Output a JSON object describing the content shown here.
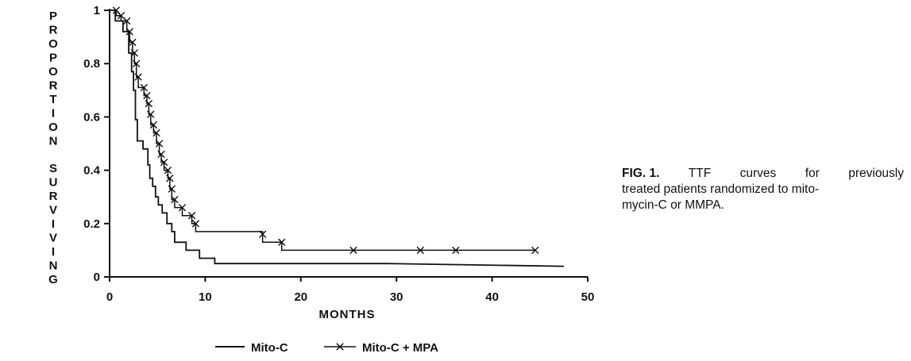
{
  "chart_data": {
    "type": "line",
    "step": true,
    "xlabel": "MONTHS",
    "ylabel": "PROPORTION SURVIVING",
    "xlim": [
      0,
      50
    ],
    "ylim": [
      0,
      1
    ],
    "x_ticks": [
      0,
      10,
      20,
      30,
      40,
      50
    ],
    "y_ticks": [
      {
        "value": 0,
        "label": "0"
      },
      {
        "value": 0.2,
        "label": "0.2"
      },
      {
        "value": 0.4,
        "label": "0.4"
      },
      {
        "value": 0.6,
        "label": "0.6"
      },
      {
        "value": 0.8,
        "label": "0.8"
      },
      {
        "value": 1,
        "label": "1"
      }
    ],
    "grid": false,
    "legend_position": "bottom",
    "series": [
      {
        "name": "Mito-C",
        "marker": "dot",
        "points": [
          [
            0,
            1
          ],
          [
            0.6,
            1
          ],
          [
            0.6,
            0.96
          ],
          [
            1.4,
            0.96
          ],
          [
            1.4,
            0.92
          ],
          [
            2.0,
            0.92
          ],
          [
            2.0,
            0.84
          ],
          [
            2.3,
            0.84
          ],
          [
            2.3,
            0.77
          ],
          [
            2.5,
            0.77
          ],
          [
            2.5,
            0.7
          ],
          [
            2.7,
            0.7
          ],
          [
            2.7,
            0.59
          ],
          [
            2.9,
            0.59
          ],
          [
            2.9,
            0.51
          ],
          [
            3.5,
            0.51
          ],
          [
            3.5,
            0.48
          ],
          [
            4.0,
            0.48
          ],
          [
            4.0,
            0.42
          ],
          [
            4.2,
            0.42
          ],
          [
            4.2,
            0.37
          ],
          [
            4.5,
            0.37
          ],
          [
            4.5,
            0.34
          ],
          [
            4.8,
            0.34
          ],
          [
            4.8,
            0.3
          ],
          [
            5.1,
            0.3
          ],
          [
            5.1,
            0.27
          ],
          [
            5.5,
            0.27
          ],
          [
            5.5,
            0.24
          ],
          [
            6.0,
            0.24
          ],
          [
            6.0,
            0.2
          ],
          [
            6.5,
            0.2
          ],
          [
            6.5,
            0.17
          ],
          [
            6.8,
            0.17
          ],
          [
            6.8,
            0.13
          ],
          [
            8.0,
            0.13
          ],
          [
            8.0,
            0.1
          ],
          [
            9.4,
            0.1
          ],
          [
            9.4,
            0.07
          ],
          [
            11.0,
            0.07
          ],
          [
            11.0,
            0.05
          ],
          [
            29.0,
            0.05
          ],
          [
            47.5,
            0.04
          ]
        ]
      },
      {
        "name": "Mito-C + MPA",
        "marker": "x",
        "points": [
          [
            0,
            1
          ],
          [
            0.7,
            1
          ],
          [
            0.7,
            0.98
          ],
          [
            1.2,
            0.98
          ],
          [
            1.2,
            0.96
          ],
          [
            1.8,
            0.96
          ],
          [
            1.8,
            0.92
          ],
          [
            2.1,
            0.92
          ],
          [
            2.1,
            0.88
          ],
          [
            2.4,
            0.88
          ],
          [
            2.4,
            0.84
          ],
          [
            2.6,
            0.84
          ],
          [
            2.6,
            0.8
          ],
          [
            2.8,
            0.8
          ],
          [
            2.8,
            0.75
          ],
          [
            3.0,
            0.75
          ],
          [
            3.0,
            0.71
          ],
          [
            3.6,
            0.71
          ],
          [
            3.6,
            0.68
          ],
          [
            3.9,
            0.68
          ],
          [
            3.9,
            0.65
          ],
          [
            4.1,
            0.65
          ],
          [
            4.1,
            0.61
          ],
          [
            4.3,
            0.61
          ],
          [
            4.3,
            0.57
          ],
          [
            4.6,
            0.57
          ],
          [
            4.6,
            0.54
          ],
          [
            4.9,
            0.54
          ],
          [
            4.9,
            0.5
          ],
          [
            5.2,
            0.5
          ],
          [
            5.2,
            0.46
          ],
          [
            5.4,
            0.46
          ],
          [
            5.4,
            0.43
          ],
          [
            5.7,
            0.43
          ],
          [
            5.7,
            0.4
          ],
          [
            6.1,
            0.4
          ],
          [
            6.1,
            0.37
          ],
          [
            6.3,
            0.37
          ],
          [
            6.3,
            0.33
          ],
          [
            6.5,
            0.33
          ],
          [
            6.5,
            0.29
          ],
          [
            6.8,
            0.29
          ],
          [
            6.8,
            0.26
          ],
          [
            7.6,
            0.26
          ],
          [
            7.6,
            0.23
          ],
          [
            8.6,
            0.23
          ],
          [
            8.6,
            0.2
          ],
          [
            9.0,
            0.2
          ],
          [
            9.0,
            0.17
          ],
          [
            16.0,
            0.17
          ],
          [
            16.0,
            0.13
          ],
          [
            18.0,
            0.13
          ],
          [
            18.0,
            0.1
          ],
          [
            44.5,
            0.1
          ]
        ],
        "markers": [
          [
            0.7,
            1
          ],
          [
            1.2,
            0.98
          ],
          [
            1.8,
            0.96
          ],
          [
            2.1,
            0.92
          ],
          [
            2.4,
            0.88
          ],
          [
            2.6,
            0.84
          ],
          [
            2.8,
            0.8
          ],
          [
            3.0,
            0.75
          ],
          [
            3.6,
            0.71
          ],
          [
            3.9,
            0.68
          ],
          [
            4.1,
            0.65
          ],
          [
            4.3,
            0.61
          ],
          [
            4.6,
            0.57
          ],
          [
            4.9,
            0.54
          ],
          [
            5.2,
            0.5
          ],
          [
            5.4,
            0.46
          ],
          [
            5.7,
            0.43
          ],
          [
            6.1,
            0.4
          ],
          [
            6.3,
            0.37
          ],
          [
            6.5,
            0.33
          ],
          [
            6.8,
            0.29
          ],
          [
            7.6,
            0.26
          ],
          [
            8.6,
            0.23
          ],
          [
            9.0,
            0.2
          ],
          [
            16.0,
            0.16
          ],
          [
            18.0,
            0.13
          ],
          [
            25.5,
            0.1
          ],
          [
            32.5,
            0.1
          ],
          [
            36.2,
            0.1
          ],
          [
            44.5,
            0.1
          ]
        ]
      }
    ]
  },
  "caption": {
    "lead": "FIG. 1.",
    "line1_words": [
      "TTF",
      "curves",
      "for",
      "previously"
    ],
    "line2": "treated patients randomized to mito-",
    "line3": "mycin-C or MMPA."
  }
}
